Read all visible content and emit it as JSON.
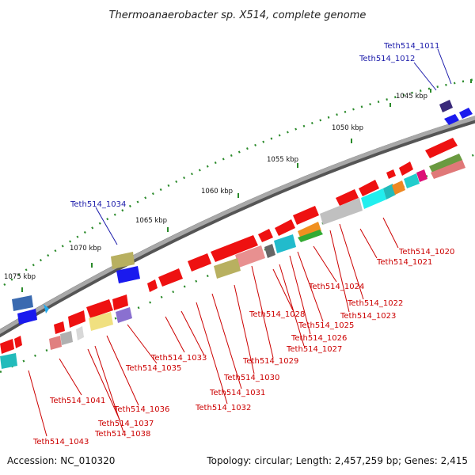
{
  "title": "Thermoanaerobacter sp. X514, complete genome",
  "footer": {
    "accession": "Accession: NC_010320",
    "topology": "Topology: circular; Length: 2,457,259 bp; Genes: 2,415"
  },
  "scale_labels": [
    "1045 kbp",
    "1050 kbp",
    "1055 kbp",
    "1060 kbp",
    "1065 kbp",
    "1070 kbp",
    "1075 kbp"
  ],
  "gene_labels_red": [
    "Teth514_1020",
    "Teth514_1021",
    "Teth514_1022",
    "Teth514_1023",
    "Teth514_1024",
    "Teth514_1025",
    "Teth514_1026",
    "Teth514_1027",
    "Teth514_1028",
    "Teth514_1029",
    "Teth514_1030",
    "Teth514_1031",
    "Teth514_1032",
    "Teth514_1033",
    "Teth514_1035",
    "Teth514_1036",
    "Teth514_1037",
    "Teth514_1038",
    "Teth514_1041",
    "Teth514_1043"
  ],
  "gene_labels_blue": [
    "Teth514_1011",
    "Teth514_1012",
    "Teth514_1034"
  ],
  "colors": {
    "backbone": "#8a8a8a",
    "gene_red": "#ee1111",
    "gene_blue": "#1a1aee",
    "label_red": "#cc0000",
    "label_blue": "#1a1aaa",
    "tick_green": "#2a8a2a"
  }
}
